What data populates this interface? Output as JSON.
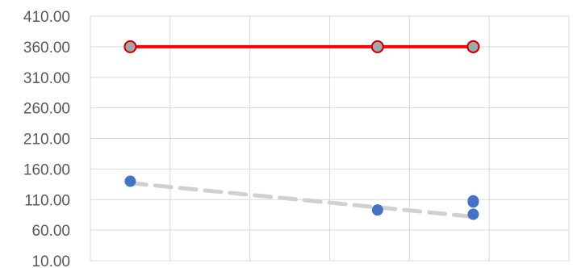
{
  "chart_data": {
    "type": "scatter",
    "title": "",
    "xlabel": "",
    "ylabel": "",
    "ylim": [
      10,
      410
    ],
    "y_ticks": [
      "10.00",
      "60.00",
      "110.00",
      "160.00",
      "210.00",
      "260.00",
      "310.00",
      "360.00",
      "410.00"
    ],
    "xlim": [
      0,
      6
    ],
    "grid": true,
    "legend": "none",
    "series": [
      {
        "style": "red-line-with-grey-markers",
        "line_color": "#ff0000",
        "marker_fill": "#a6a6a6",
        "marker_edge": "#c00000",
        "points": [
          {
            "x": 0.5,
            "y": 360
          },
          {
            "x": 3.6,
            "y": 360
          },
          {
            "x": 4.8,
            "y": 360
          },
          {
            "x": 4.8,
            "y": 360
          }
        ]
      },
      {
        "style": "blue-markers",
        "marker_fill": "#4472c4",
        "points": [
          {
            "x": 0.5,
            "y": 140
          },
          {
            "x": 3.6,
            "y": 93
          },
          {
            "x": 4.8,
            "y": 108
          },
          {
            "x": 4.8,
            "y": 106
          },
          {
            "x": 4.8,
            "y": 86
          }
        ]
      },
      {
        "style": "dashed-trendline",
        "line_color": "#d0d0d0",
        "points": [
          {
            "x": 0.5,
            "y": 137
          },
          {
            "x": 4.8,
            "y": 82
          }
        ]
      }
    ]
  }
}
